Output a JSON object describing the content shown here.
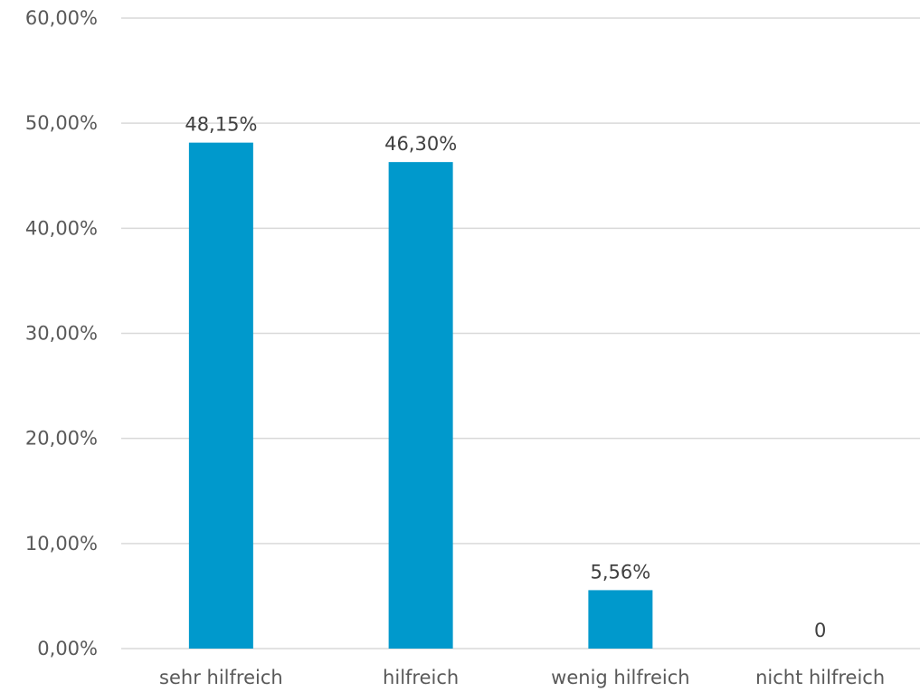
{
  "chart_data": {
    "type": "bar",
    "categories": [
      "sehr hilfreich",
      "hilfreich",
      "wenig hilfreich",
      "nicht hilfreich"
    ],
    "values": [
      48.15,
      46.3,
      5.56,
      0
    ],
    "data_labels": [
      "48,15%",
      "46,30%",
      "5,56%",
      "0"
    ],
    "ylim": [
      0,
      60
    ],
    "y_ticks": [
      0,
      10,
      20,
      30,
      40,
      50,
      60
    ],
    "y_tick_labels": [
      "0,00%",
      "10,00%",
      "20,00%",
      "30,00%",
      "40,00%",
      "50,00%",
      "60,00%"
    ],
    "title": "",
    "xlabel": "",
    "ylabel": "",
    "grid": true,
    "legend": "none",
    "bar_color": "#0099cc",
    "grid_color": "#d9d9d9"
  }
}
